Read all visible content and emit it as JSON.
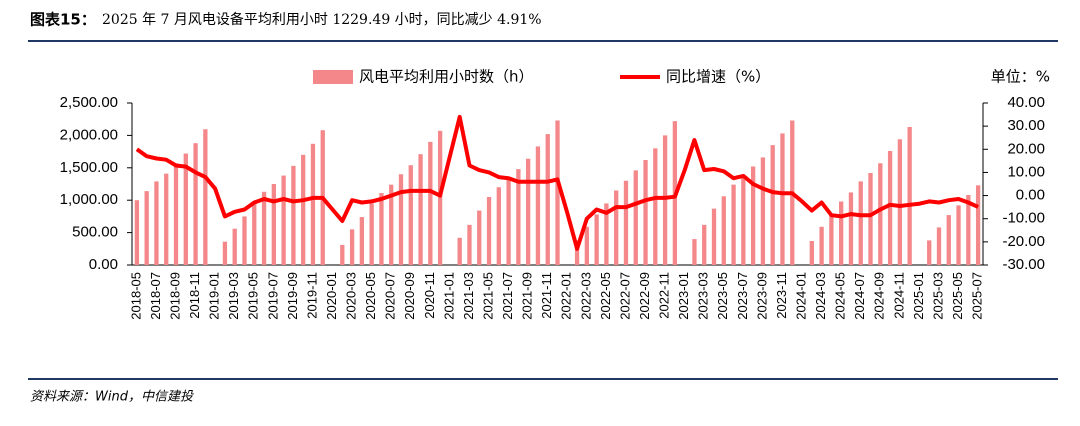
{
  "chart_data": {
    "type": "bar_line",
    "figure_label": "图表15：",
    "title": "2025 年 7 月风电设备平均利用小时 1229.49 小时，同比减少 4.91%",
    "unit_label": "单位：%",
    "source": "资料来源：Wind，中信建投",
    "categories": [
      "2018-05",
      null,
      "2018-07",
      null,
      "2018-09",
      null,
      "2018-11",
      null,
      "2019-01",
      null,
      "2019-03",
      null,
      "2019-05",
      null,
      "2019-07",
      null,
      "2019-09",
      null,
      "2019-11",
      null,
      "2020-01",
      null,
      "2020-03",
      null,
      "2020-05",
      null,
      "2020-07",
      null,
      "2020-09",
      null,
      "2020-11",
      null,
      "2021-01",
      null,
      "2021-03",
      null,
      "2021-05",
      null,
      "2021-07",
      null,
      "2021-09",
      null,
      "2021-11",
      null,
      "2022-01",
      null,
      "2022-03",
      null,
      "2022-05",
      null,
      "2022-07",
      null,
      "2022-09",
      null,
      "2022-11",
      null,
      "2023-01",
      null,
      "2023-03",
      null,
      "2023-05",
      null,
      "2023-07",
      null,
      "2023-09",
      null,
      "2023-11",
      null,
      "2024-01",
      null,
      "2024-03",
      null,
      "2024-05",
      null,
      "2024-07",
      null,
      "2024-09",
      null,
      "2024-11",
      null,
      "2025-01",
      null,
      "2025-03",
      null,
      "2025-05",
      null,
      "2025-07"
    ],
    "series": [
      {
        "name": "风电平均利用小时数（h）",
        "color": "#f4878a",
        "kind": "bar",
        "axis": "y",
        "values": [
          1000,
          1140,
          1290,
          1410,
          1570,
          1720,
          1880,
          2095,
          null,
          360,
          560,
          750,
          950,
          1130,
          1250,
          1380,
          1530,
          1700,
          1870,
          2080,
          null,
          310,
          550,
          740,
          950,
          1110,
          1240,
          1400,
          1540,
          1710,
          1900,
          2070,
          null,
          420,
          620,
          840,
          1050,
          1200,
          1330,
          1480,
          1640,
          1830,
          2020,
          2230,
          null,
          380,
          590,
          780,
          950,
          1150,
          1300,
          1460,
          1620,
          1800,
          2000,
          2220,
          null,
          400,
          620,
          870,
          1060,
          1240,
          1370,
          1520,
          1660,
          1850,
          2030,
          2230,
          null,
          370,
          590,
          780,
          980,
          1120,
          1290,
          1420,
          1570,
          1760,
          1940,
          2130,
          null,
          380,
          580,
          770,
          920,
          1080,
          1229.49
        ]
      },
      {
        "name": "同比增速（%）",
        "color": "#ff0000",
        "kind": "line",
        "axis": "y2",
        "values": [
          20,
          17,
          16,
          15.5,
          13,
          12.5,
          10,
          8,
          3,
          -9,
          -7,
          -6,
          -3,
          -1.5,
          -2.5,
          -1.5,
          -2.5,
          -2,
          -1,
          -1,
          -6,
          -11,
          -2,
          -3,
          -2.5,
          -1.5,
          0,
          1.5,
          2,
          2,
          2,
          0,
          17,
          34,
          13,
          11,
          10,
          8,
          7.5,
          6,
          6,
          6,
          6,
          7,
          -7.5,
          -23,
          -10,
          -6,
          -7.5,
          -5,
          -5,
          -3.5,
          -2,
          -1,
          -1,
          -0.5,
          11,
          24,
          11,
          11.5,
          10.5,
          7.5,
          8.5,
          5,
          3,
          1.5,
          1,
          1,
          -2.5,
          -6.5,
          -3,
          -8.5,
          -9,
          -8,
          -8.5,
          -8.5,
          -6,
          -4,
          -4.5,
          -4,
          -3.5,
          -2.5,
          -3,
          -2,
          -1.5,
          -3,
          -4.91
        ]
      }
    ],
    "ylim": [
      0,
      2500
    ],
    "yticks": [
      {
        "value": 0,
        "label": "0.00"
      },
      {
        "value": 500,
        "label": "500.00"
      },
      {
        "value": 1000,
        "label": "1,000.00"
      },
      {
        "value": 1500,
        "label": "1,500.00"
      },
      {
        "value": 2000,
        "label": "2,000.00"
      },
      {
        "value": 2500,
        "label": "2,500.00"
      }
    ],
    "y2lim": [
      -30,
      40
    ],
    "y2ticks": [
      {
        "value": -30,
        "label": "-30.00"
      },
      {
        "value": -20,
        "label": "-20.00"
      },
      {
        "value": -10,
        "label": "-10.00"
      },
      {
        "value": 0,
        "label": "0.00"
      },
      {
        "value": 10,
        "label": "10.00"
      },
      {
        "value": 20,
        "label": "20.00"
      },
      {
        "value": 30,
        "label": "30.00"
      },
      {
        "value": 40,
        "label": "40.00"
      }
    ]
  }
}
